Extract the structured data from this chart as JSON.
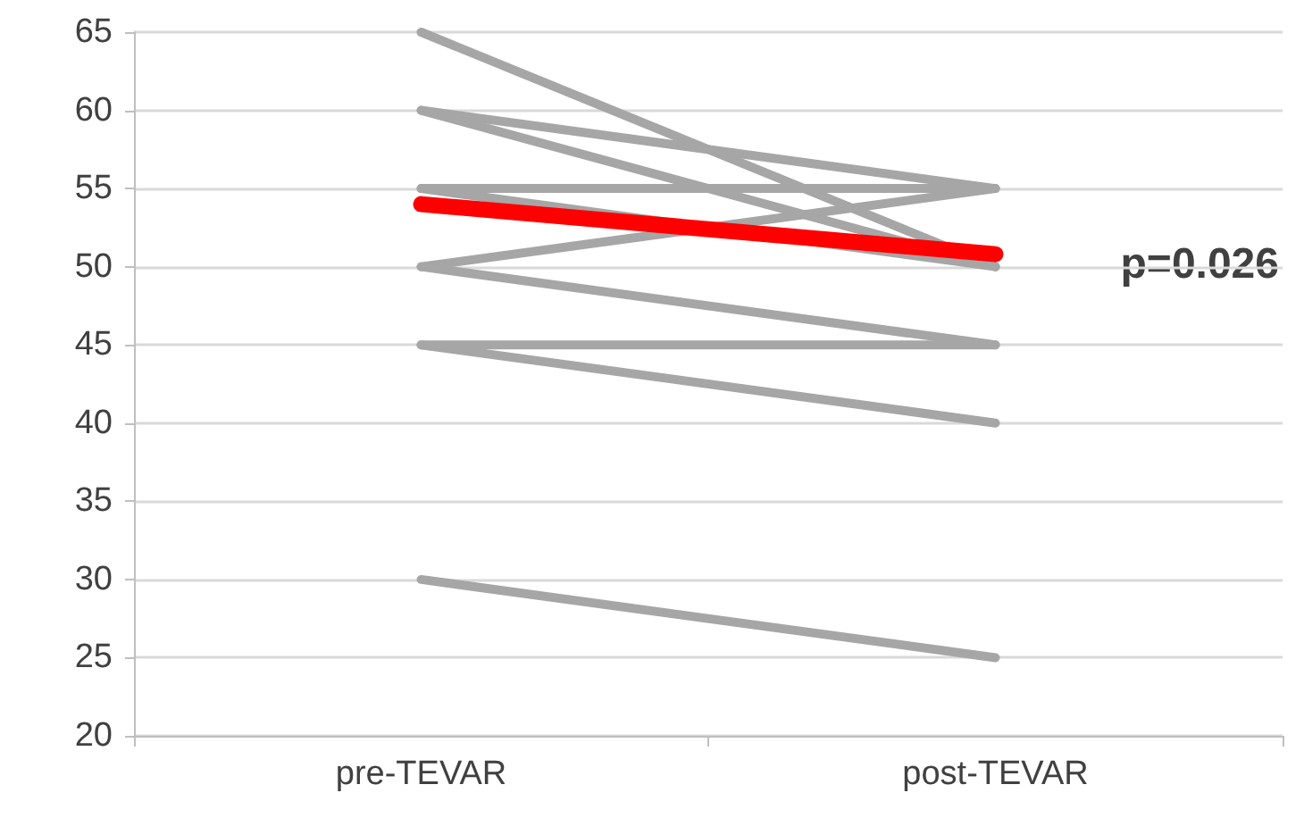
{
  "chart_data": {
    "type": "line",
    "categories": [
      "pre-TEVAR",
      "post-TEVAR"
    ],
    "series": [
      {
        "color": "#a6a6a6",
        "values": [
          65,
          50
        ]
      },
      {
        "color": "#a6a6a6",
        "values": [
          60,
          55
        ]
      },
      {
        "color": "#a6a6a6",
        "values": [
          60,
          50
        ]
      },
      {
        "color": "#a6a6a6",
        "values": [
          55,
          55
        ]
      },
      {
        "color": "#a6a6a6",
        "values": [
          55,
          50
        ]
      },
      {
        "color": "#a6a6a6",
        "values": [
          50,
          55
        ]
      },
      {
        "color": "#a6a6a6",
        "values": [
          50,
          45
        ]
      },
      {
        "color": "#a6a6a6",
        "values": [
          45,
          45
        ]
      },
      {
        "color": "#a6a6a6",
        "values": [
          45,
          40
        ]
      },
      {
        "color": "#a6a6a6",
        "values": [
          30,
          25
        ]
      },
      {
        "color": "#ff0000",
        "values": [
          54,
          50.8
        ]
      }
    ],
    "ylim": [
      20,
      65
    ],
    "yticks": [
      20,
      25,
      30,
      35,
      40,
      45,
      50,
      55,
      60,
      65
    ],
    "grid": "y",
    "marker": "none",
    "line_style": "solid",
    "annotations": [
      "p=0.026"
    ]
  }
}
